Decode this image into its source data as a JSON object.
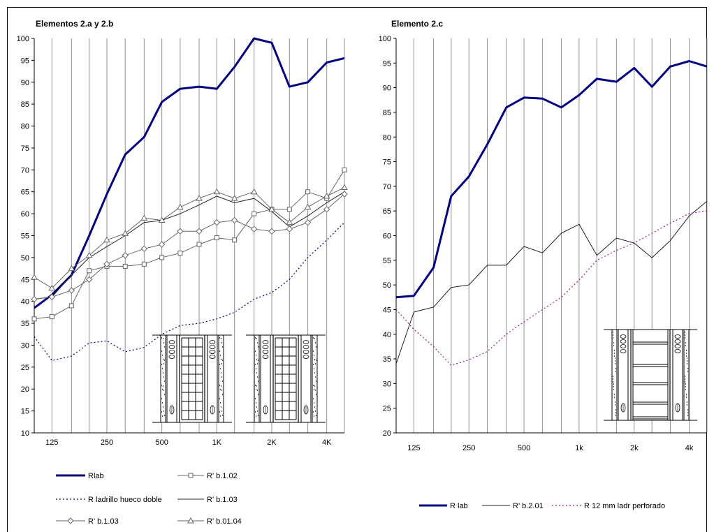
{
  "chart_data": [
    {
      "type": "line",
      "title": "Elementos 2.a y 2.b",
      "xlabel": "",
      "ylabel": "",
      "x_scale": "log",
      "x_tick_labels": [
        "125",
        "250",
        "500",
        "1K",
        "2K",
        "4K"
      ],
      "x_tick_values": [
        125,
        250,
        500,
        1000,
        2000,
        4000
      ],
      "x": [
        100,
        125,
        160,
        200,
        250,
        315,
        400,
        500,
        630,
        800,
        1000,
        1250,
        1600,
        2000,
        2500,
        3150,
        4000,
        5000
      ],
      "ylim": [
        10,
        100
      ],
      "y_ticks": [
        10,
        15,
        20,
        25,
        30,
        35,
        40,
        45,
        50,
        55,
        60,
        65,
        70,
        75,
        80,
        85,
        90,
        95,
        100
      ],
      "grid": "vertical",
      "legend_position": "bottom",
      "series": [
        {
          "name": "Rlab",
          "style": "thick",
          "color": "#000080",
          "marker": "none",
          "values": [
            38.5,
            41.5,
            46,
            55,
            64.5,
            73.5,
            77.5,
            85.5,
            88.5,
            89,
            88.5,
            93.5,
            100,
            99,
            89,
            90,
            94.5,
            95.5
          ]
        },
        {
          "name": "R' b.1.02",
          "style": "thin",
          "color": "#666666",
          "marker": "square",
          "values": [
            36,
            36.5,
            39,
            47,
            48,
            48,
            48.5,
            50,
            51,
            53,
            54.5,
            54,
            60,
            61,
            61,
            65,
            63.5,
            70
          ]
        },
        {
          "name": "R ladrillo hueco doble",
          "style": "dotted",
          "color": "#000080",
          "marker": "none",
          "values": [
            32,
            26.5,
            27.5,
            30.5,
            31,
            28.5,
            29.5,
            32.5,
            34.5,
            35,
            36,
            37.5,
            40.5,
            42,
            45,
            50,
            54,
            58
          ]
        },
        {
          "name": "R' b.1.03",
          "style": "thin",
          "color": "#222222",
          "marker": "none",
          "values": [
            40.5,
            41,
            46,
            50,
            52.5,
            55,
            58,
            58.5,
            60,
            62,
            64,
            62.5,
            63.5,
            60.5,
            57,
            59.5,
            62.5,
            65
          ]
        },
        {
          "name": "R' b.1.03",
          "style": "thin",
          "color": "#666666",
          "marker": "diamond",
          "values": [
            40.5,
            41,
            42.5,
            45,
            48.5,
            50.5,
            52,
            53,
            56,
            56,
            58,
            58.5,
            56.5,
            56,
            56.5,
            58,
            61,
            64.5
          ]
        },
        {
          "name": "R' b.01.04",
          "style": "thin",
          "color": "#666666",
          "marker": "triangle",
          "values": [
            45.5,
            43,
            47.5,
            50.5,
            54,
            55.5,
            59,
            58.5,
            61.5,
            63.5,
            65,
            63.5,
            65,
            61,
            58,
            61.5,
            64,
            66
          ]
        }
      ]
    },
    {
      "type": "line",
      "title": "Elemento 2.c",
      "xlabel": "",
      "ylabel": "",
      "x_scale": "log",
      "x_tick_labels": [
        "125",
        "250",
        "500",
        "1k",
        "2k",
        "4k"
      ],
      "x_tick_values": [
        125,
        250,
        500,
        1000,
        2000,
        4000
      ],
      "x": [
        100,
        125,
        160,
        200,
        250,
        315,
        400,
        500,
        630,
        800,
        1000,
        1250,
        1600,
        2000,
        2500,
        3150,
        4000,
        5000
      ],
      "ylim": [
        20,
        100
      ],
      "y_ticks": [
        20,
        25,
        30,
        35,
        40,
        45,
        50,
        55,
        60,
        65,
        70,
        75,
        80,
        85,
        90,
        95,
        100
      ],
      "grid": "vertical",
      "legend_position": "bottom",
      "series": [
        {
          "name": "R lab",
          "style": "thick",
          "color": "#000080",
          "marker": "none",
          "values": [
            47.5,
            47.8,
            53.5,
            68,
            72,
            78.5,
            86,
            88,
            87.8,
            86,
            88.5,
            91.8,
            91.2,
            94,
            90.2,
            94.3,
            95.4,
            94.3
          ]
        },
        {
          "name": "R' b.2.01",
          "style": "thin",
          "color": "#222222",
          "marker": "none",
          "values": [
            34,
            44.5,
            45.5,
            49.5,
            50,
            54,
            54,
            57.8,
            56.5,
            60.5,
            62.3,
            56,
            59.5,
            58.5,
            55.5,
            59,
            64,
            67
          ]
        },
        {
          "name": "R 12 mm ladr perforado",
          "style": "dotted",
          "color": "#a0208c",
          "marker": "none",
          "values": [
            45,
            41,
            37.5,
            33.7,
            34.8,
            36.5,
            40,
            42.5,
            45,
            47.5,
            51,
            55,
            57,
            58.5,
            60.5,
            62.5,
            64.5,
            65
          ]
        }
      ]
    }
  ]
}
